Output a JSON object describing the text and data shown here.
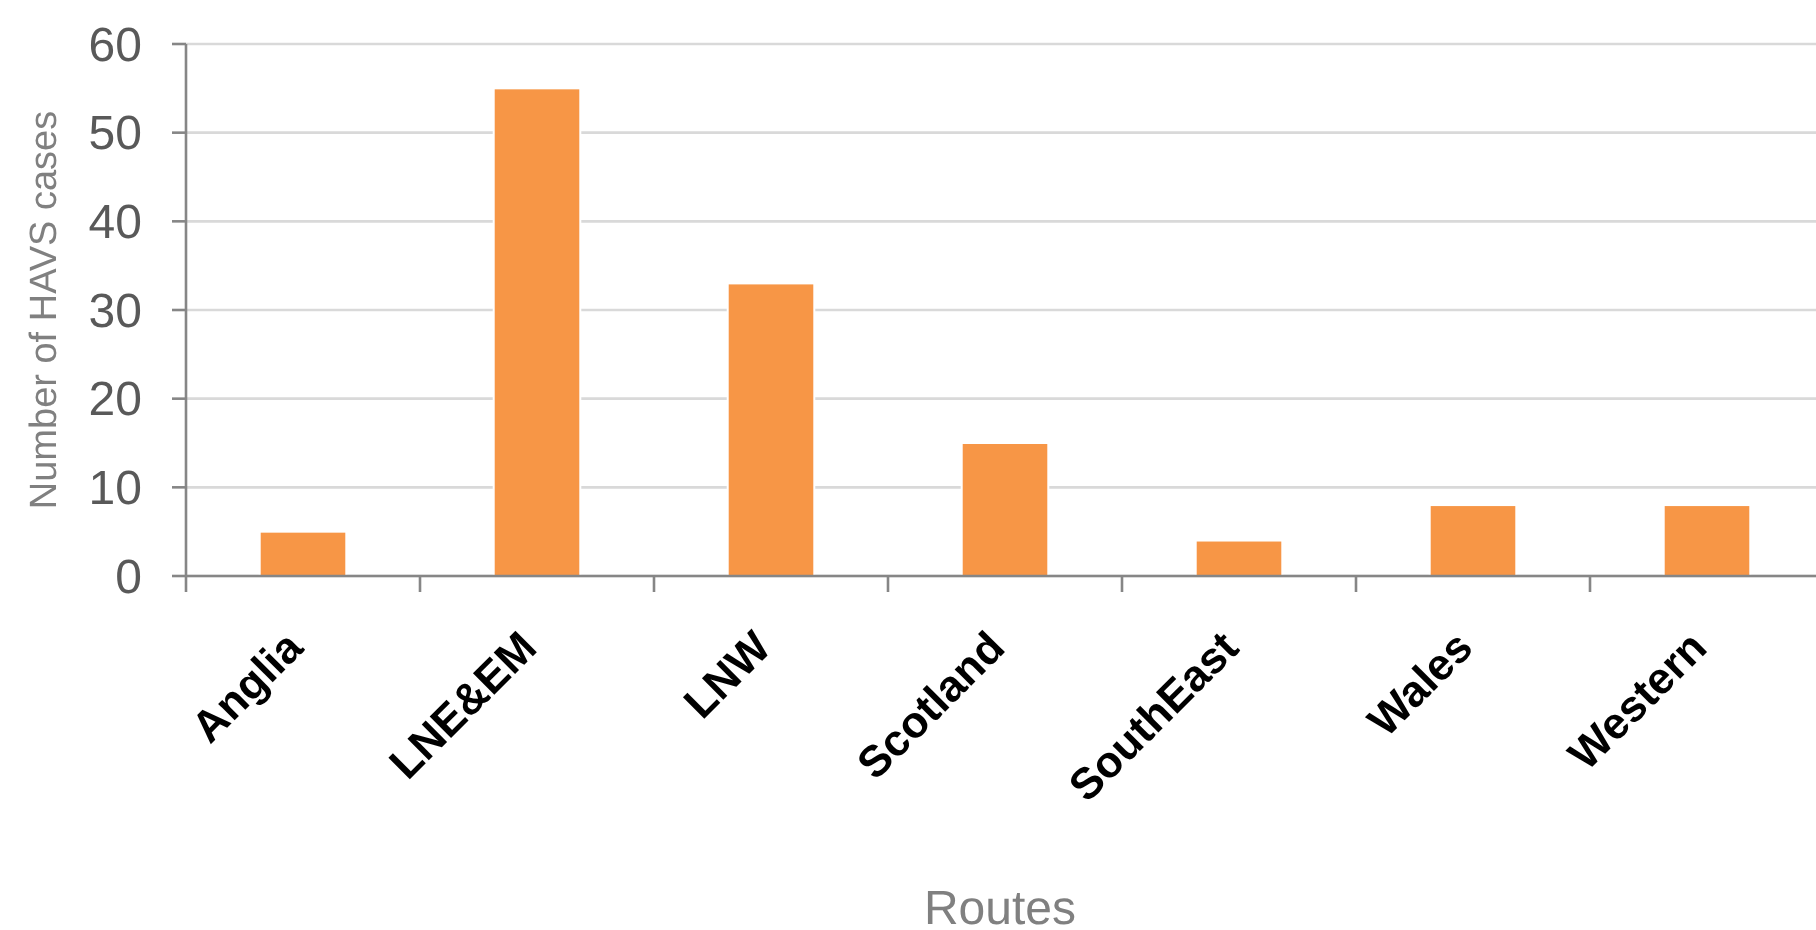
{
  "chart_data": {
    "type": "bar",
    "xlabel": "Routes",
    "ylabel": "Number of HAVS cases",
    "categories": [
      "Anglia",
      "LNE&EM",
      "LNW",
      "Scotland",
      "SouthEast",
      "Wales",
      "Western"
    ],
    "values": [
      5,
      55,
      33,
      15,
      4,
      8,
      8
    ],
    "color": "#f79646",
    "ylim": [
      0,
      60
    ],
    "yticks": [
      0,
      10,
      20,
      30,
      40,
      50,
      60
    ],
    "grid": "y"
  }
}
